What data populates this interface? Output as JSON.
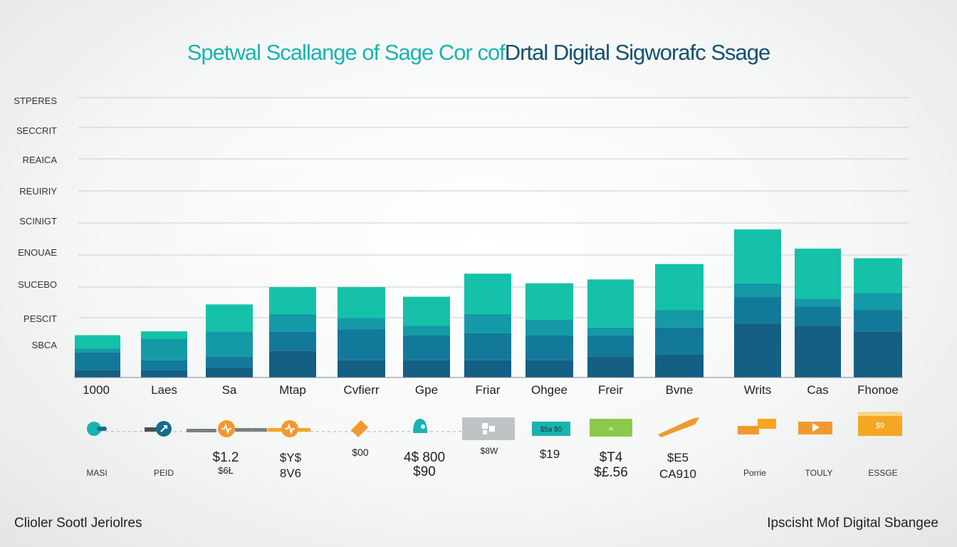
{
  "title": {
    "part1": "Spetwal Scallange of Sage Cor cof",
    "part2": "Drtal Digital Sigworafc Ssage"
  },
  "footer": {
    "left": "Clioler Sootl Jeriolres",
    "right": "Ipscisht Mof Digital Sbangee"
  },
  "colors": {
    "segment_top": "#15c1a9",
    "segment_mid": "#139aa6",
    "segment_bottom": "#145f83",
    "title_teal": "#19b3b0",
    "title_navy": "#15506e"
  },
  "chart_data": {
    "type": "bar",
    "stacked": true,
    "y_tick_labels": [
      "STPERES",
      "SECCRIT",
      "REAICA",
      "REUIRIY",
      "SCINIGT",
      "ENOUAE",
      "SUCEBO",
      "PESCIT",
      "SBCA"
    ],
    "grid": true,
    "categories": [
      "1000",
      "Laes",
      "Sa",
      "Mtap",
      "Cvfierr",
      "Gpe",
      "Friar",
      "Ohgee",
      "Freir",
      "Bvne",
      "Writs",
      "Cas",
      "Fhonoe"
    ],
    "series": [
      {
        "values": [
          0.4,
          0.4,
          0.5,
          1.4,
          0.9,
          0.9,
          0.9,
          0.9,
          1.1,
          1.2,
          2.8,
          2.7,
          2.4
        ]
      },
      {
        "values": [
          0.9,
          0.5,
          0.6,
          1.0,
          1.6,
          1.3,
          1.4,
          1.3,
          1.1,
          1.4,
          1.4,
          1.0,
          1.1
        ]
      },
      {
        "values": [
          0.2,
          1.1,
          1.3,
          0.9,
          0.6,
          0.5,
          1.0,
          0.8,
          0.4,
          0.9,
          0.7,
          0.4,
          0.9
        ]
      },
      {
        "values": [
          0.7,
          0.4,
          1.4,
          1.4,
          1.6,
          1.5,
          2.1,
          1.9,
          2.5,
          2.4,
          2.8,
          2.6,
          1.8
        ]
      }
    ],
    "icon_row": [
      {
        "icon": "toggle-icon",
        "color": "#19b3b0"
      },
      {
        "icon": "arrow-icon",
        "color": "#146e8a"
      },
      {
        "icon": "pin-icon",
        "color": "#f2992e"
      },
      {
        "icon": "pulse-icon",
        "color": "#f2992e"
      },
      {
        "icon": "tag-icon",
        "color": "#f2992e"
      },
      {
        "icon": "bag-icon",
        "color": "#19b3b0"
      },
      {
        "icon": "grid-icon",
        "color": "#bfc3c5"
      },
      {
        "icon": "sign-icon",
        "color": "#19b3b0",
        "text": "$5a $0"
      },
      {
        "icon": "card-icon",
        "color": "#8cc84b"
      },
      {
        "icon": "arrow-icon",
        "color": "#f2992e"
      },
      {
        "icon": "flag-icon",
        "color": "#f2992e"
      },
      {
        "icon": "box-icon",
        "color": "#f2992e"
      },
      {
        "icon": "note-icon",
        "color": "#f5a623",
        "text": "$9"
      }
    ],
    "value_labels": [
      {
        "line1": "$1.2",
        "line2": "$6Ł"
      },
      {
        "line1": "$Y$",
        "line2": "8V6"
      },
      {
        "line1": "$00",
        "line2": ""
      },
      {
        "line1": "4$ 800",
        "line2": "$90"
      },
      {
        "line1": "$8W",
        "line2": ""
      },
      {
        "line1": "$19",
        "line2": ""
      },
      {
        "line1": "$T4",
        "line2": "$£.56"
      },
      {
        "line1": "$E5",
        "line2": "CA910"
      }
    ],
    "small_labels": [
      "MASI",
      "PEID",
      "Porrie",
      "TOULY",
      "ESSGE"
    ]
  }
}
